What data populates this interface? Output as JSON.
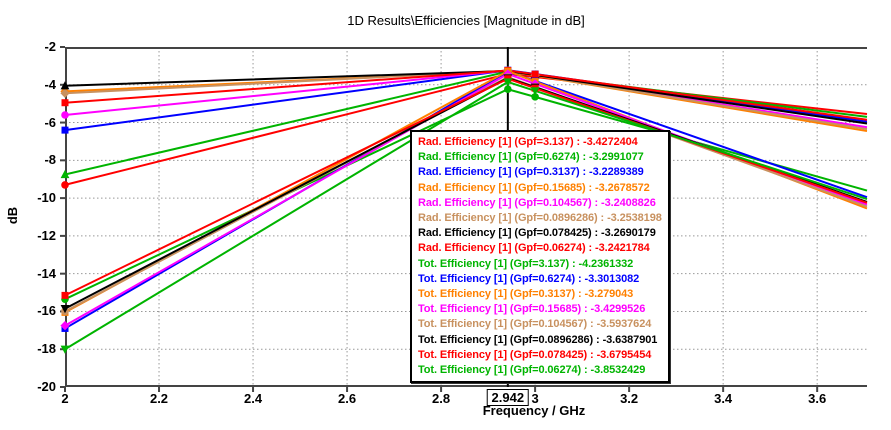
{
  "chart_data": {
    "type": "line",
    "title": "1D Results\\Efficiencies [Magnitude in dB]",
    "xlabel": "Frequency / GHz",
    "ylabel": "dB",
    "xlim": [
      2,
      3.706
    ],
    "ylim": [
      -20,
      -2
    ],
    "x_ticks": [
      2,
      2.2,
      2.4,
      2.6,
      2.8,
      3,
      3.2,
      3.4,
      3.6
    ],
    "x_tick_labels": [
      "2",
      "2.2",
      "2.4",
      "2.6",
      "2.8",
      "3",
      "3.2",
      "3.4",
      "3.6"
    ],
    "y_ticks": [
      -2,
      -4,
      -6,
      -8,
      -10,
      -12,
      -14,
      -16,
      -18,
      -20
    ],
    "y_tick_labels": [
      "-2",
      "-4",
      "-6",
      "-8",
      "-10",
      "-12",
      "-14",
      "-16",
      "-18",
      "-20"
    ],
    "grid": "dotted",
    "legend_position": "center-overlay",
    "axis_marker": {
      "x": 2.942,
      "label": "2.942"
    },
    "series": [
      {
        "label": "Rad. Efficiency [1]",
        "gpf": "3.137",
        "legend_label": "Rad. Efficiency [1] (Gpf=3.137)",
        "marker_value": "-3.4272404",
        "color": "red",
        "marker_shape": "circle",
        "points": [
          [
            2,
            -9.3
          ],
          [
            2.942,
            -3.4272404
          ],
          [
            3,
            -3.59
          ],
          [
            3.706,
            -5.55
          ]
        ]
      },
      {
        "label": "Rad. Efficiency [1]",
        "gpf": "0.6274",
        "legend_label": "Rad. Efficiency [1] (Gpf=0.6274)",
        "marker_value": "-3.2991077",
        "color": "green",
        "marker_shape": "triangle-up",
        "points": [
          [
            2,
            -8.75
          ],
          [
            2.942,
            -3.2991077
          ],
          [
            3,
            -3.48
          ],
          [
            3.706,
            -5.7
          ]
        ]
      },
      {
        "label": "Rad. Efficiency [1]",
        "gpf": "0.3137",
        "legend_label": "Rad. Efficiency [1] (Gpf=0.3137)",
        "marker_value": "-3.2289389",
        "color": "blue",
        "marker_shape": "square",
        "points": [
          [
            2,
            -6.4
          ],
          [
            2.942,
            -3.2289389
          ],
          [
            3,
            -3.43
          ],
          [
            3.706,
            -5.95
          ]
        ]
      },
      {
        "label": "Rad. Efficiency [1]",
        "gpf": "0.15685",
        "legend_label": "Rad. Efficiency [1] (Gpf=0.15685)",
        "marker_value": "-3.2678572",
        "color": "orange",
        "marker_shape": "diamond",
        "points": [
          [
            2,
            -4.35
          ],
          [
            2.942,
            -3.2678572
          ],
          [
            3,
            -3.51
          ],
          [
            3.706,
            -6.45
          ]
        ]
      },
      {
        "label": "Rad. Efficiency [1]",
        "gpf": "0.104567",
        "legend_label": "Rad. Efficiency [1] (Gpf=0.104567)",
        "marker_value": "-3.2408826",
        "color": "magenta",
        "marker_shape": "circle",
        "points": [
          [
            2,
            -5.6
          ],
          [
            2.942,
            -3.2408826
          ],
          [
            3,
            -3.47
          ],
          [
            3.706,
            -6.25
          ]
        ]
      },
      {
        "label": "Rad. Efficiency [1]",
        "gpf": "0.0896286",
        "legend_label": "Rad. Efficiency [1] (Gpf=0.0896286)",
        "marker_value": "-3.2538198",
        "color": "tan",
        "marker_shape": "diamond",
        "points": [
          [
            2,
            -4.45
          ],
          [
            2.942,
            -3.2538198
          ],
          [
            3,
            -3.49
          ],
          [
            3.706,
            -6.35
          ]
        ]
      },
      {
        "label": "Rad. Efficiency [1]",
        "gpf": "0.078425",
        "legend_label": "Rad. Efficiency [1] (Gpf=0.078425)",
        "marker_value": "-3.2690179",
        "color": "black",
        "marker_shape": "triangle-up",
        "points": [
          [
            2,
            -4.05
          ],
          [
            2.942,
            -3.2690179
          ],
          [
            3,
            -3.48
          ],
          [
            3.706,
            -6.05
          ]
        ]
      },
      {
        "label": "Rad. Efficiency [1]",
        "gpf": "0.06274",
        "legend_label": "Rad. Efficiency [1] (Gpf=0.06274)",
        "marker_value": "-3.2421784",
        "color": "red",
        "marker_shape": "square",
        "points": [
          [
            2,
            -4.95
          ],
          [
            2.942,
            -3.2421784
          ],
          [
            3,
            -3.44
          ],
          [
            3.706,
            -5.85
          ]
        ]
      },
      {
        "label": "Tot. Efficiency [1]",
        "gpf": "3.137",
        "legend_label": "Tot. Efficiency [1] (Gpf=3.137)",
        "marker_value": "-4.2361332",
        "color": "green",
        "marker_shape": "circle",
        "points": [
          [
            2,
            -15.35
          ],
          [
            2.942,
            -4.2361332
          ],
          [
            3,
            -4.64
          ],
          [
            3.706,
            -9.6
          ]
        ]
      },
      {
        "label": "Tot. Efficiency [1]",
        "gpf": "0.6274",
        "legend_label": "Tot. Efficiency [1] (Gpf=0.6274)",
        "marker_value": "-3.3013082",
        "color": "blue",
        "marker_shape": "square",
        "points": [
          [
            2,
            -16.9
          ],
          [
            2.942,
            -3.3013082
          ],
          [
            3,
            -3.8
          ],
          [
            3.706,
            -9.95
          ]
        ]
      },
      {
        "label": "Tot. Efficiency [1]",
        "gpf": "0.3137",
        "legend_label": "Tot. Efficiency [1] (Gpf=0.3137)",
        "marker_value": "-3.279043",
        "color": "orange",
        "marker_shape": "square",
        "points": [
          [
            2,
            -16.05
          ],
          [
            2.942,
            -3.279043
          ],
          [
            3,
            -3.83
          ],
          [
            3.706,
            -10.55
          ]
        ]
      },
      {
        "label": "Tot. Efficiency [1]",
        "gpf": "0.15685",
        "legend_label": "Tot. Efficiency [1] (Gpf=0.15685)",
        "marker_value": "-3.4299526",
        "color": "magenta",
        "marker_shape": "diamond",
        "points": [
          [
            2,
            -16.75
          ],
          [
            2.942,
            -3.4299526
          ],
          [
            3,
            -3.95
          ],
          [
            3.706,
            -10.35
          ]
        ]
      },
      {
        "label": "Tot. Efficiency [1]",
        "gpf": "0.104567",
        "legend_label": "Tot. Efficiency [1] (Gpf=0.104567)",
        "marker_value": "-3.5937624",
        "color": "tan",
        "marker_shape": "circle",
        "points": [
          [
            2,
            -16.0
          ],
          [
            2.942,
            -3.5937624
          ],
          [
            3,
            -4.11
          ],
          [
            3.706,
            -10.45
          ]
        ]
      },
      {
        "label": "Tot. Efficiency [1]",
        "gpf": "0.0896286",
        "legend_label": "Tot. Efficiency [1] (Gpf=0.0896286)",
        "marker_value": "-3.6387901",
        "color": "black",
        "marker_shape": "triangle-down",
        "points": [
          [
            2,
            -15.85
          ],
          [
            2.942,
            -3.6387901
          ],
          [
            3,
            -4.13
          ],
          [
            3.706,
            -10.2
          ]
        ]
      },
      {
        "label": "Tot. Efficiency [1]",
        "gpf": "0.078425",
        "legend_label": "Tot. Efficiency [1] (Gpf=0.078425)",
        "marker_value": "-3.6795454",
        "color": "red",
        "marker_shape": "square",
        "points": [
          [
            2,
            -15.15
          ],
          [
            2.942,
            -3.6795454
          ],
          [
            3,
            -4.18
          ],
          [
            3.706,
            -10.25
          ]
        ]
      },
      {
        "label": "Tot. Efficiency [1]",
        "gpf": "0.06274",
        "legend_label": "Tot. Efficiency [1] (Gpf=0.06274)",
        "marker_value": "-3.8532429",
        "color": "green",
        "marker_shape": "triangle-down",
        "points": [
          [
            2,
            -18.0
          ],
          [
            2.942,
            -3.8532429
          ],
          [
            3,
            -4.32
          ],
          [
            3.706,
            -10.05
          ]
        ]
      }
    ],
    "legend_separator": " : "
  },
  "colors": {
    "red": "#ff0000",
    "green": "#00b400",
    "blue": "#0000ff",
    "orange": "#ff8000",
    "magenta": "#ff00ff",
    "tan": "#c8915f",
    "black": "#000000",
    "axis": "#444444",
    "grid": "#999999",
    "marker_line": "#000000",
    "background": "#ffffff"
  }
}
